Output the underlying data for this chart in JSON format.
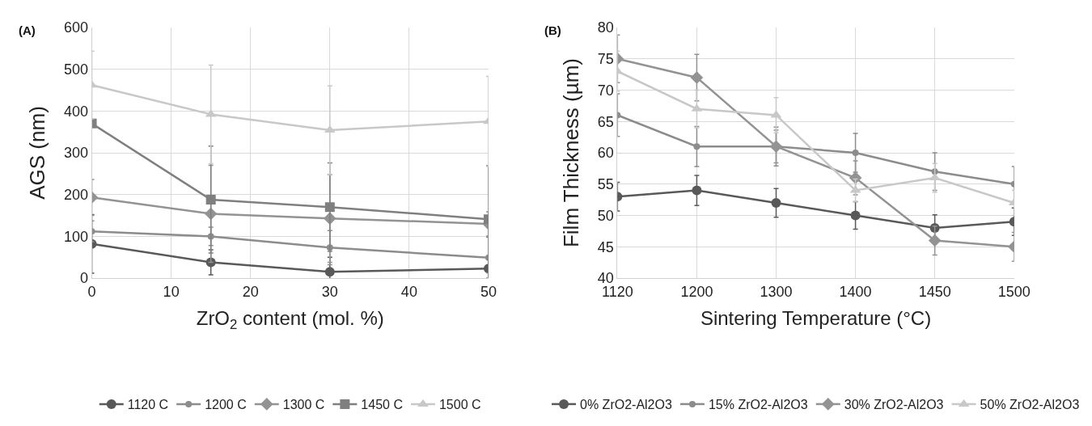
{
  "chart_data": [
    {
      "type": "line",
      "annotations": [
        "(A)"
      ],
      "xlabel": "ZrO$_{2}$ content (mol. %)",
      "ylabel": "AGS (nm)",
      "x": [
        0,
        15,
        30,
        50
      ],
      "xlim": [
        0,
        50
      ],
      "xticks": [
        0,
        10,
        20,
        30,
        40,
        50
      ],
      "ylim": [
        0,
        600
      ],
      "yticks": [
        0,
        100,
        200,
        300,
        400,
        500,
        600
      ],
      "grid": true,
      "legend": "bottom",
      "series": [
        {
          "name": "1120 C",
          "color": "#595959",
          "marker": "circle",
          "values": [
            82,
            38,
            15,
            23
          ],
          "errors": [
            70,
            30,
            35,
            30
          ]
        },
        {
          "name": "1200 C",
          "color": "#8c8c8c",
          "marker": "circle",
          "values": [
            112,
            100,
            73,
            49
          ],
          "errors": [
            25,
            22,
            41,
            49
          ]
        },
        {
          "name": "1300 C",
          "color": "#939393",
          "marker": "diamond",
          "values": [
            193,
            154,
            143,
            130
          ],
          "errors": [
            43,
            116,
            105,
            29
          ]
        },
        {
          "name": "1450 C",
          "color": "#7f7f7f",
          "marker": "square",
          "values": [
            370,
            188,
            170,
            141
          ],
          "errors": [
            null,
            128,
            106,
            128
          ]
        },
        {
          "name": "1500 C",
          "color": "#c8c8c8",
          "marker": "triangle",
          "values": [
            462,
            392,
            354,
            375
          ],
          "errors": [
            81,
            118,
            106,
            108
          ]
        }
      ]
    },
    {
      "type": "line",
      "annotations": [
        "(B)"
      ],
      "xlabel": "Sintering Temperature (°C)",
      "ylabel": "Film Thickness (µm)",
      "categories": [
        "1120",
        "1200",
        "1300",
        "1400",
        "1450",
        "1500"
      ],
      "ylim": [
        40,
        80
      ],
      "yticks": [
        40,
        45,
        50,
        55,
        60,
        65,
        70,
        75,
        80
      ],
      "grid": true,
      "legend": "bottom",
      "series": [
        {
          "name": "0% ZrO2-Al2O3",
          "color": "#595959",
          "marker": "circle",
          "values": [
            53,
            54,
            52,
            50,
            48,
            49
          ],
          "errors": [
            2.3,
            2.4,
            2.3,
            2.2,
            2.1,
            2.2
          ]
        },
        {
          "name": "15% ZrO2-Al2O3",
          "color": "#8c8c8c",
          "marker": "circle",
          "values": [
            66,
            61,
            61,
            60,
            57,
            55
          ],
          "errors": [
            3.4,
            3.2,
            3.1,
            3.1,
            3,
            2.8
          ]
        },
        {
          "name": "30% ZrO2-Al2O3",
          "color": "#939393",
          "marker": "diamond",
          "values": [
            75,
            72,
            61,
            56,
            46,
            45
          ],
          "errors": [
            3.8,
            3.7,
            2.6,
            2.7,
            2.3,
            2.3
          ]
        },
        {
          "name": "50% ZrO2-Al2O3",
          "color": "#c8c8c8",
          "marker": "triangle",
          "values": [
            73,
            67,
            66,
            54,
            56,
            52
          ],
          "errors": [
            3.2,
            3,
            2.8,
            1.8,
            2.3,
            2
          ]
        }
      ]
    }
  ]
}
